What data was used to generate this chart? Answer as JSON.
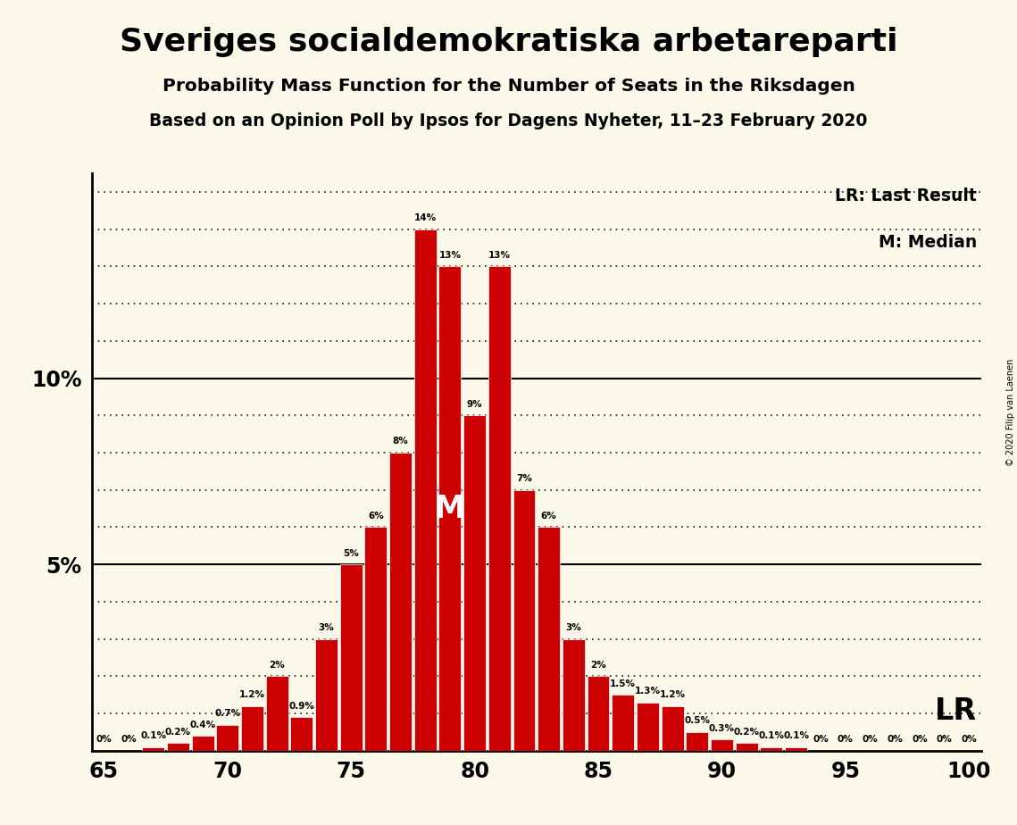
{
  "title": "Sveriges socialdemokratiska arbetareparti",
  "subtitle1": "Probability Mass Function for the Number of Seats in the Riksdagen",
  "subtitle2": "Based on an Opinion Poll by Ipsos for Dagens Nyheter, 11–23 February 2020",
  "copyright": "© 2020 Filip van Laenen",
  "seats": [
    65,
    66,
    67,
    68,
    69,
    70,
    71,
    72,
    73,
    74,
    75,
    76,
    77,
    78,
    79,
    80,
    81,
    82,
    83,
    84,
    85,
    86,
    87,
    88,
    89,
    90,
    91,
    92,
    93,
    94,
    95,
    96,
    97,
    98,
    99,
    100
  ],
  "probabilities": [
    0.0,
    0.0,
    0.1,
    0.2,
    0.4,
    0.7,
    1.2,
    2.0,
    0.9,
    3.0,
    5.0,
    6.0,
    8.0,
    14.0,
    13.0,
    9.0,
    13.0,
    7.0,
    6.0,
    3.0,
    2.0,
    1.5,
    1.3,
    1.2,
    0.5,
    0.3,
    0.2,
    0.1,
    0.1,
    0.0,
    0.0,
    0.0,
    0.0,
    0.0,
    0.0,
    0.0
  ],
  "bar_color": "#cc0000",
  "bg_color": "#faf8e8",
  "median_seat": 79,
  "lr_seat": 100,
  "lr_label": "LR",
  "legend_lr": "LR: Last Result",
  "legend_m": "M: Median",
  "ylim": 15.5,
  "xmin": 64.5,
  "xmax": 100.5
}
